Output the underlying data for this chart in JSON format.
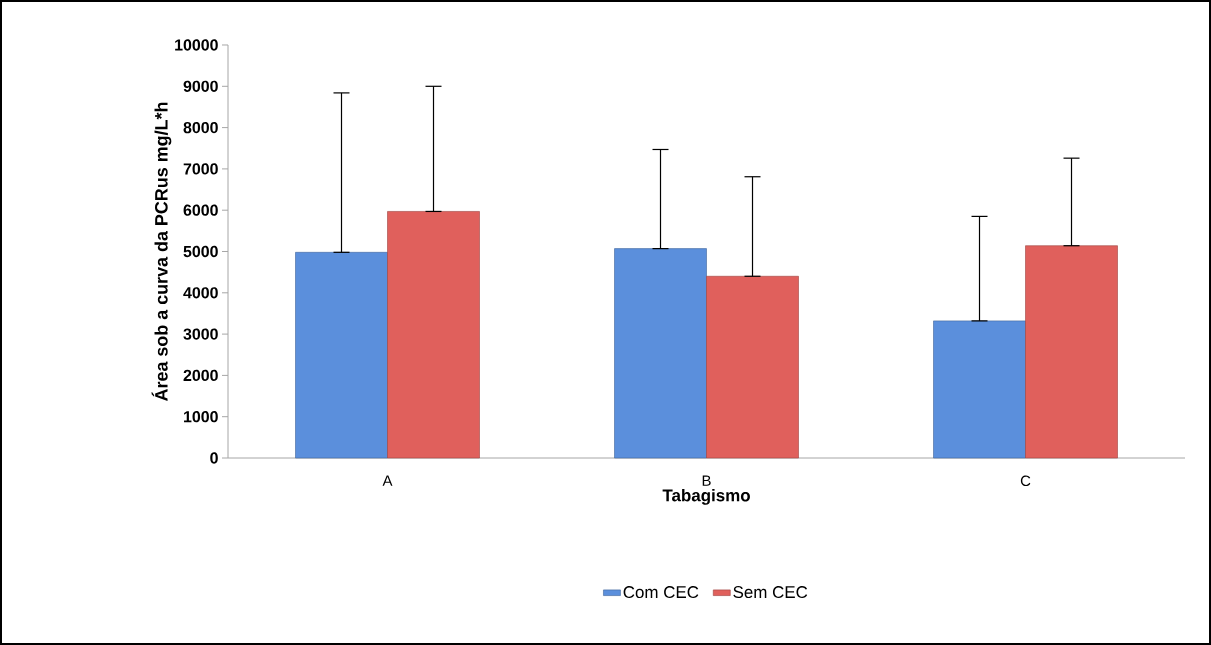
{
  "chart_data": {
    "type": "bar",
    "xlabel": "Tabagismo",
    "ylabel": "Área sob a curva da PCRus mg/L*h",
    "categories": [
      "A",
      "B",
      "C"
    ],
    "series": [
      {
        "name": "Com CEC",
        "color": "#5b8fdc",
        "values": [
          4980,
          5070,
          3320
        ],
        "errors": [
          [
            4980,
            8840
          ],
          [
            5070,
            7470
          ],
          [
            3320,
            5850
          ]
        ]
      },
      {
        "name": "Sem CEC",
        "color": "#e0605c",
        "values": [
          5970,
          4400,
          5140
        ],
        "errors": [
          [
            5970,
            9000
          ],
          [
            4400,
            6810
          ],
          [
            5140,
            7260
          ]
        ]
      }
    ],
    "ylim": [
      0,
      10000
    ],
    "yticks": [
      0,
      1000,
      2000,
      3000,
      4000,
      5000,
      6000,
      7000,
      8000,
      9000,
      10000
    ],
    "grid": false,
    "legend": "bottom"
  }
}
